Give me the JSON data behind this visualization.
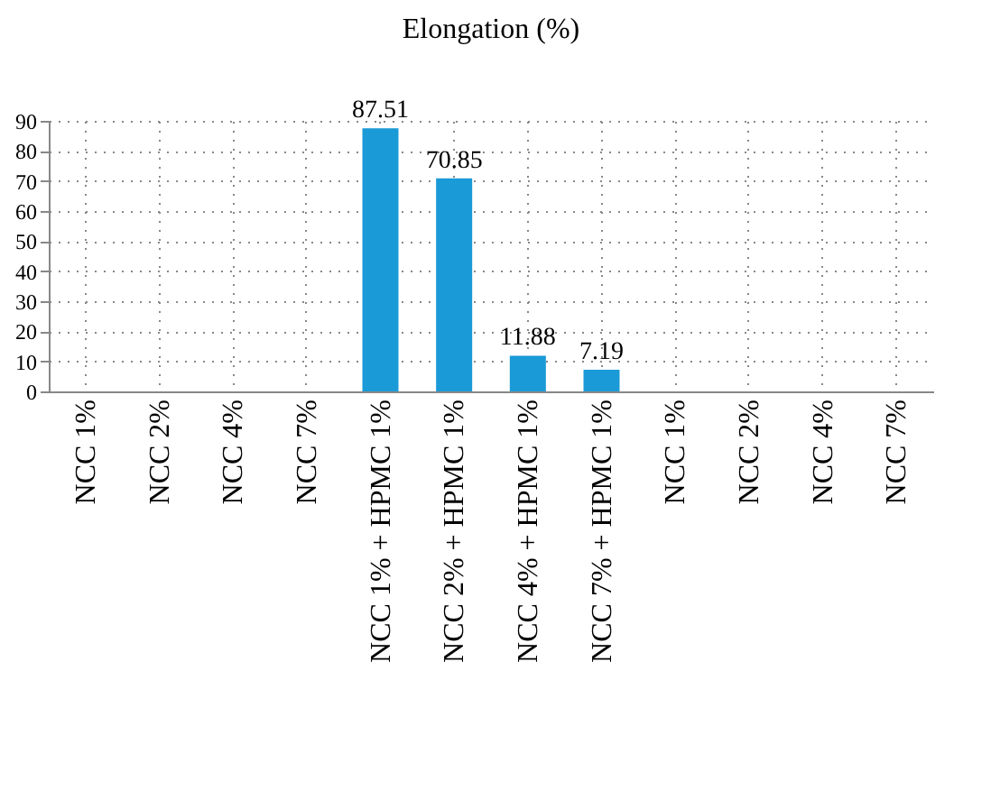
{
  "chart_data": {
    "type": "bar",
    "title": "Elongation (%)",
    "categories": [
      "NCC 1%",
      "NCC 2%",
      "NCC 4%",
      "NCC 7%",
      "NCC 1% + HPMC 1%",
      "NCC 2% + HPMC 1%",
      "NCC 4% + HPMC 1%",
      "NCC 7% + HPMC 1%",
      "NCC 1%",
      "NCC 2%",
      "NCC 4%",
      "NCC 7%"
    ],
    "values": [
      0,
      0,
      0,
      0,
      87.51,
      70.85,
      11.88,
      7.19,
      0,
      0,
      0,
      0
    ],
    "value_labels": [
      null,
      null,
      null,
      null,
      "87.51",
      "70.85",
      "11.88",
      "7.19",
      null,
      null,
      null,
      null
    ],
    "color": "#1a9ad6",
    "ylim": [
      0,
      90
    ],
    "yticks": [
      0,
      10,
      20,
      30,
      40,
      50,
      60,
      70,
      80,
      90
    ],
    "grid": true
  }
}
